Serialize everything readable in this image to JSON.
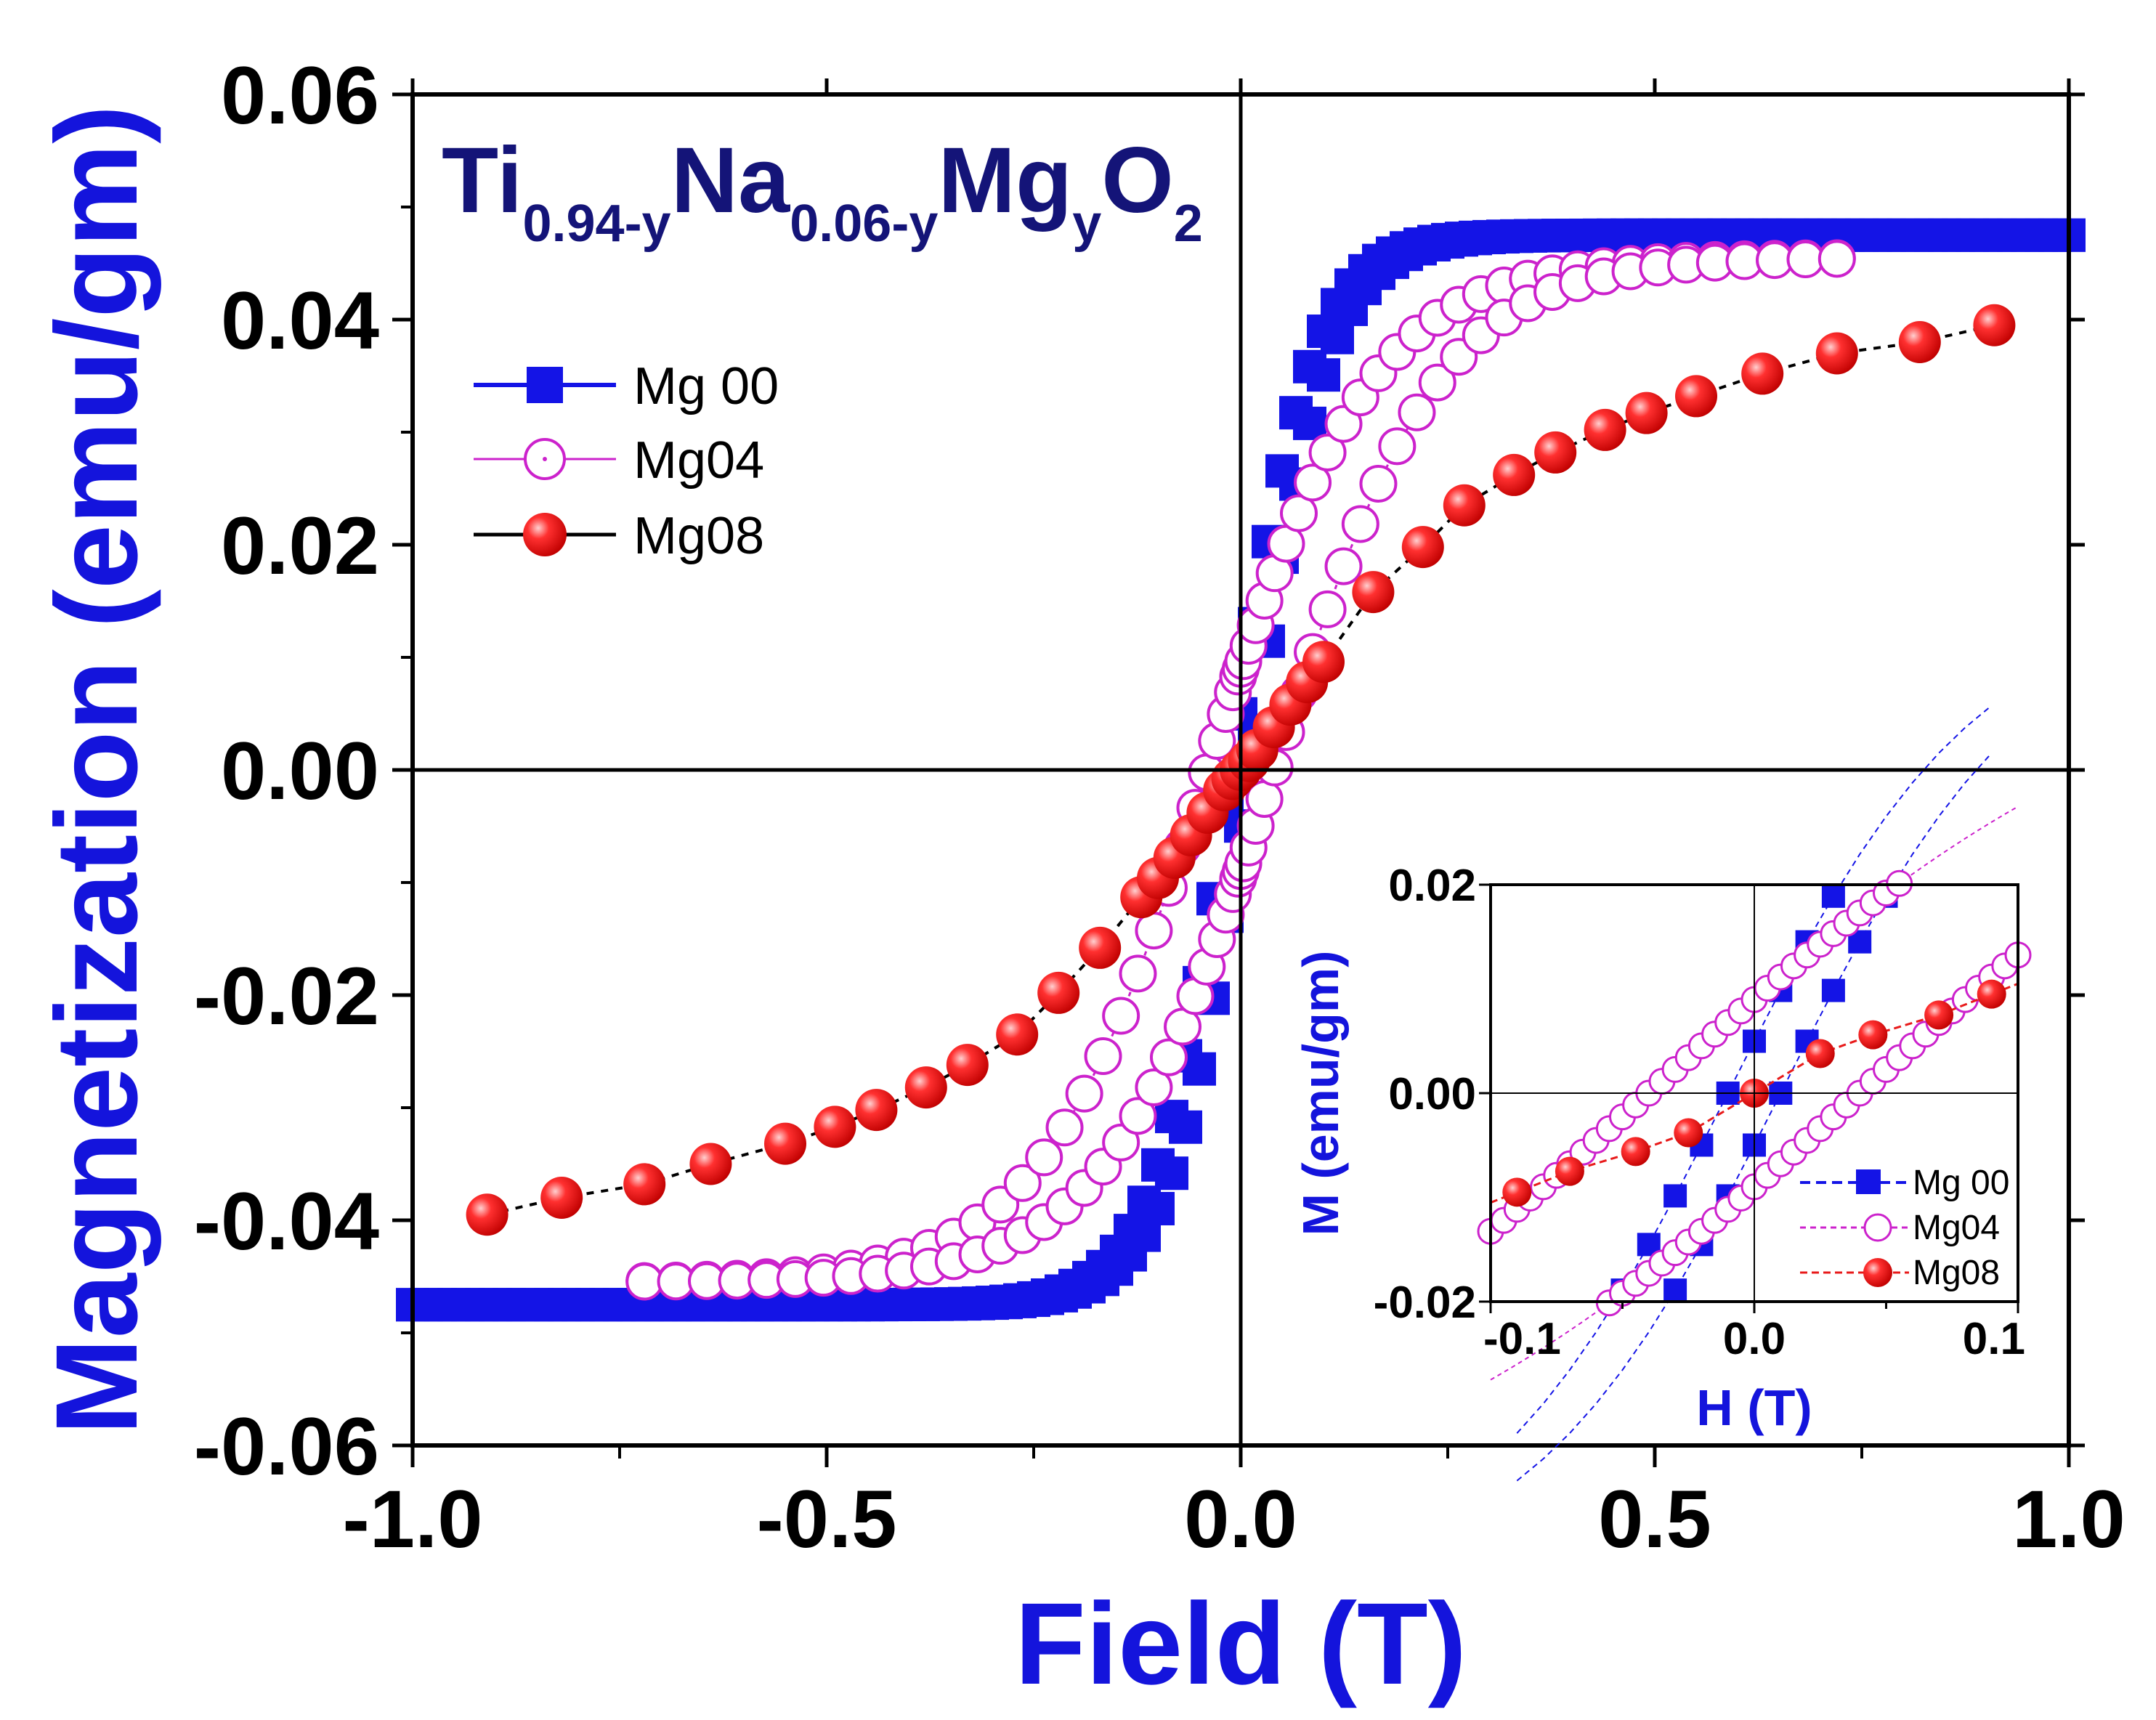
{
  "colors": {
    "mg00": "#1414e6",
    "mg04": "#cc22cc",
    "mg08": "#e81a1a",
    "mg08_line": "#000000",
    "mg04_line": "#cc22cc",
    "axis_label": "#1414dc",
    "formula": "#141478",
    "axes": "#000000"
  },
  "chart_data": [
    {
      "id": "main",
      "type": "scatter",
      "title": "",
      "formula": {
        "parts": [
          {
            "text": "Ti",
            "sub": "0.94-y"
          },
          {
            "text": "Na",
            "sub": "0.06-y"
          },
          {
            "text": "Mg",
            "sub": "y"
          },
          {
            "text": "O",
            "sub": "2"
          }
        ]
      },
      "xlabel": "Field (T)",
      "ylabel": "Magnetization (emu/gm)",
      "xlim": [
        -1.0,
        1.0
      ],
      "ylim": [
        -0.06,
        0.06
      ],
      "xticks": [
        "-1.0",
        "-0.5",
        "0.0",
        "0.5",
        "1.0"
      ],
      "yticks": [
        "-0.06",
        "-0.04",
        "-0.02",
        "0.00",
        "0.02",
        "0.04",
        "0.06"
      ],
      "legend": {
        "position": "upper-left",
        "entries": [
          "Mg 00",
          "Mg04",
          "Mg08"
        ]
      },
      "series": [
        {
          "name": "Mg 00",
          "marker": "square",
          "model": {
            "Ms": 0.0475,
            "Hc": 0.01,
            "a": 0.095,
            "xrange": [
              -1.0,
              1.0
            ],
            "points_per_branch": 120
          }
        },
        {
          "name": "Mg04",
          "marker": "open-circle",
          "model": {
            "Ms": 0.0455,
            "Hc": 0.04,
            "a": 0.2,
            "xrange": [
              -0.72,
              0.72
            ],
            "points_per_branch": 60
          }
        },
        {
          "name": "Mg08",
          "marker": "filled-circle",
          "x": [
            -0.91,
            -0.82,
            -0.72,
            -0.64,
            -0.55,
            -0.49,
            -0.44,
            -0.38,
            -0.33,
            -0.27,
            -0.22,
            -0.17,
            -0.12,
            -0.1,
            -0.08,
            -0.06,
            -0.04,
            -0.02,
            -0.01,
            0.0,
            0.01,
            0.02,
            0.04,
            0.06,
            0.08,
            0.1,
            0.16,
            0.22,
            0.27,
            0.33,
            0.38,
            0.44,
            0.49,
            0.55,
            0.63,
            0.72,
            0.82,
            0.91
          ],
          "y": [
            -0.0395,
            -0.038,
            -0.0368,
            -0.035,
            -0.0332,
            -0.0317,
            -0.0302,
            -0.0282,
            -0.0262,
            -0.0235,
            -0.0198,
            -0.0158,
            -0.0113,
            -0.0096,
            -0.0078,
            -0.0058,
            -0.0038,
            -0.0018,
            -0.0008,
            0.0,
            0.0008,
            0.0018,
            0.0038,
            0.0058,
            0.0078,
            0.0096,
            0.0158,
            0.0198,
            0.0235,
            0.0262,
            0.0282,
            0.0302,
            0.0317,
            0.0332,
            0.0352,
            0.037,
            0.038,
            0.0395
          ]
        }
      ]
    },
    {
      "id": "inset",
      "type": "scatter",
      "xlabel": "H (T)",
      "ylabel": "M (emu/gm)",
      "xlim": [
        -0.1,
        0.1
      ],
      "ylim": [
        -0.02,
        0.02
      ],
      "xticks": [
        "-0.1",
        "0.0",
        "0.1"
      ],
      "yticks": [
        "-0.02",
        "0.00",
        "0.02"
      ],
      "legend": {
        "position": "lower-right",
        "entries": [
          "Mg 00",
          "Mg04",
          "Mg08"
        ]
      },
      "series": [
        {
          "name": "Mg 00",
          "marker": "square",
          "model": {
            "Ms": 0.0475,
            "Hc": 0.01,
            "a": 0.095
          },
          "x": [
            -0.09,
            -0.08,
            -0.07,
            -0.06,
            -0.05,
            -0.04,
            -0.03,
            -0.02,
            -0.01,
            0.0,
            0.01,
            0.02,
            0.03,
            0.04,
            0.05,
            0.06,
            0.07,
            0.08,
            0.09
          ]
        },
        {
          "name": "Mg04",
          "marker": "open-circle",
          "model": {
            "Ms": 0.0455,
            "Hc": 0.04,
            "a": 0.2
          },
          "x": [
            -0.1,
            -0.095,
            -0.09,
            -0.085,
            -0.08,
            -0.075,
            -0.07,
            -0.065,
            -0.06,
            -0.055,
            -0.05,
            -0.045,
            -0.04,
            -0.035,
            -0.03,
            -0.025,
            -0.02,
            -0.015,
            -0.01,
            -0.005,
            0.0,
            0.005,
            0.01,
            0.015,
            0.02,
            0.025,
            0.03,
            0.035,
            0.04,
            0.045,
            0.05,
            0.055,
            0.06,
            0.065,
            0.07,
            0.075,
            0.08,
            0.085,
            0.09,
            0.095,
            0.1
          ]
        },
        {
          "name": "Mg08",
          "marker": "filled-circle",
          "x": [
            -0.09,
            -0.07,
            -0.045,
            -0.025,
            0.0,
            0.025,
            0.045,
            0.07,
            0.09
          ],
          "y": [
            -0.0095,
            -0.0075,
            -0.0056,
            -0.0038,
            0.0,
            0.0038,
            0.0056,
            0.0075,
            0.0095
          ]
        }
      ]
    }
  ]
}
